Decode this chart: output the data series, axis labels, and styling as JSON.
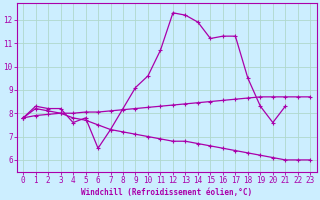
{
  "bg_color": "#cceeff",
  "grid_color": "#b0d8cc",
  "line_color": "#aa00aa",
  "xlim": [
    -0.5,
    23.5
  ],
  "ylim": [
    5.5,
    12.7
  ],
  "yticks": [
    6,
    7,
    8,
    9,
    10,
    11,
    12
  ],
  "xticks": [
    0,
    1,
    2,
    3,
    4,
    5,
    6,
    7,
    8,
    9,
    10,
    11,
    12,
    13,
    14,
    15,
    16,
    17,
    18,
    19,
    20,
    21,
    22,
    23
  ],
  "xlabel": "Windchill (Refroidissement éolien,°C)",
  "line1_x": [
    0,
    1,
    2,
    3,
    4,
    5,
    6,
    7,
    8,
    9,
    10,
    11,
    12,
    13,
    14,
    15,
    16,
    17,
    18,
    19,
    20,
    21
  ],
  "line1_y": [
    7.8,
    8.3,
    8.2,
    8.2,
    7.6,
    7.8,
    6.5,
    7.3,
    8.2,
    9.1,
    9.6,
    10.7,
    12.3,
    12.2,
    11.9,
    11.2,
    11.3,
    11.3,
    9.5,
    8.3,
    7.6,
    8.3
  ],
  "line2_x": [
    0,
    1,
    2,
    3,
    4,
    5,
    6,
    7,
    8,
    9,
    10,
    11,
    12,
    13,
    14,
    15,
    16,
    17,
    18,
    19,
    20,
    21,
    22,
    23
  ],
  "line2_y": [
    7.8,
    7.9,
    7.95,
    8.0,
    8.0,
    8.05,
    8.05,
    8.1,
    8.15,
    8.2,
    8.25,
    8.3,
    8.35,
    8.4,
    8.45,
    8.5,
    8.55,
    8.6,
    8.65,
    8.7,
    8.7,
    8.7,
    8.7,
    8.7
  ],
  "line3_x": [
    0,
    1,
    2,
    3,
    4,
    5,
    6,
    7,
    8,
    9,
    10,
    11,
    12,
    13,
    14,
    15,
    16,
    17,
    18,
    19,
    20,
    21,
    22,
    23
  ],
  "line3_y": [
    7.8,
    8.2,
    8.1,
    8.0,
    7.8,
    7.7,
    7.5,
    7.3,
    7.2,
    7.1,
    7.0,
    6.9,
    6.8,
    6.8,
    6.7,
    6.6,
    6.5,
    6.4,
    6.3,
    6.2,
    6.1,
    6.0,
    6.0,
    6.0
  ]
}
